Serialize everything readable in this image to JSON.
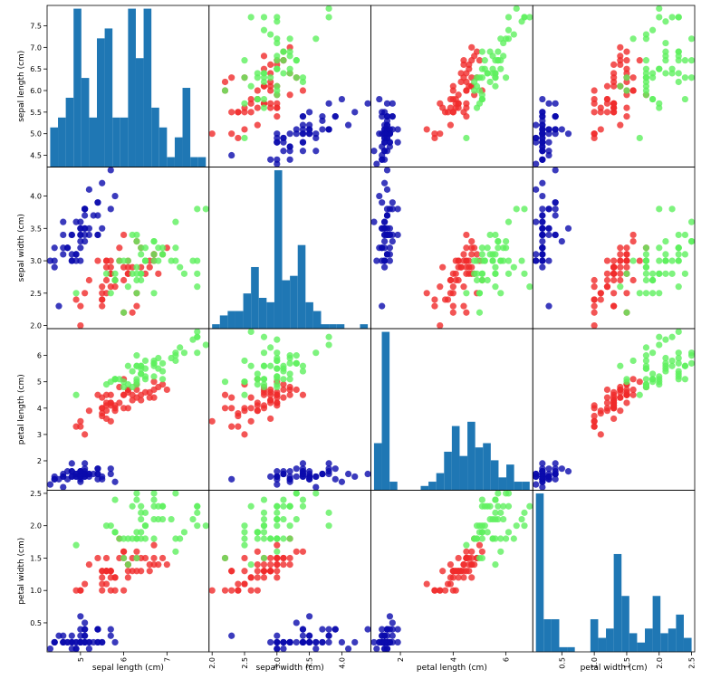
{
  "colors": {
    "setosa": "#0a0aad",
    "versicolor": "#f02a2a",
    "virginica": "#5ef05e",
    "hist": "#1f77b4"
  },
  "variables": [
    {
      "label": "sepal length (cm)",
      "min": 4.3,
      "max": 7.9,
      "ticks": [
        4.5,
        5.0,
        5.5,
        6.0,
        6.5,
        7.0,
        7.5
      ],
      "tick_labels": [
        "4.5",
        "5.0",
        "5.5",
        "6.0",
        "6.5",
        "7.0",
        "7.5"
      ],
      "xticks": [
        5,
        6,
        7
      ],
      "xtick_labels": [
        "5",
        "6",
        "7"
      ]
    },
    {
      "label": "sepal width (cm)",
      "min": 2.0,
      "max": 4.4,
      "ticks": [
        2.0,
        2.5,
        3.0,
        3.5,
        4.0
      ],
      "tick_labels": [
        "2.0",
        "2.5",
        "3.0",
        "3.5",
        "4.0"
      ],
      "xticks": [
        2.0,
        2.5,
        3.0,
        3.5,
        4.0
      ],
      "xtick_labels": [
        "2.0",
        "2.5",
        "3.0",
        "3.5",
        "4.0"
      ]
    },
    {
      "label": "petal length (cm)",
      "min": 1.0,
      "max": 6.9,
      "ticks": [
        2,
        3,
        4,
        5,
        6
      ],
      "tick_labels": [
        "2",
        "3",
        "4",
        "5",
        "6"
      ],
      "xticks": [
        2,
        4,
        6
      ],
      "xtick_labels": [
        "2",
        "4",
        "6"
      ]
    },
    {
      "label": "petal width (cm)",
      "min": 0.1,
      "max": 2.5,
      "ticks": [
        0.5,
        1.0,
        1.5,
        2.0,
        2.5
      ],
      "tick_labels": [
        "0.5",
        "1.0",
        "1.5",
        "2.0",
        "2.5"
      ],
      "xticks": [
        0.5,
        1.0,
        1.5,
        2.0,
        2.5
      ],
      "xtick_labels": [
        "0.5",
        "1.0",
        "1.5",
        "2.0",
        "2.5"
      ]
    }
  ],
  "chart_data": {
    "type": "scatter",
    "title": "",
    "layout": "scatter matrix 4x4, histograms on diagonal",
    "variables": [
      "sepal length (cm)",
      "sepal width (cm)",
      "petal length (cm)",
      "petal width (cm)"
    ],
    "histograms": [
      {
        "variable": "sepal length (cm)",
        "bins": 20,
        "counts": [
          4,
          5,
          7,
          16,
          9,
          5,
          13,
          14,
          5,
          5,
          16,
          11,
          16,
          6,
          4,
          1,
          3,
          8,
          1,
          1
        ]
      },
      {
        "variable": "sepal width (cm)",
        "bins": 20,
        "counts": [
          1,
          3,
          4,
          4,
          8,
          14,
          7,
          6,
          36,
          11,
          12,
          19,
          6,
          4,
          1,
          1,
          1,
          0,
          0,
          1
        ]
      },
      {
        "variable": "petal length (cm)",
        "bins": 20,
        "counts": [
          11,
          37,
          2,
          0,
          0,
          0,
          1,
          2,
          4,
          9,
          15,
          8,
          16,
          10,
          11,
          7,
          3,
          6,
          2,
          2
        ]
      },
      {
        "variable": "petal width (cm)",
        "bins": 20,
        "counts": [
          34,
          7,
          7,
          1,
          1,
          0,
          0,
          7,
          3,
          5,
          21,
          12,
          4,
          2,
          5,
          12,
          4,
          5,
          8,
          3
        ]
      }
    ],
    "series": [
      {
        "color": "setosa",
        "points": [
          [
            5.1,
            3.5,
            1.4,
            0.2
          ],
          [
            4.9,
            3.0,
            1.4,
            0.2
          ],
          [
            4.7,
            3.2,
            1.3,
            0.2
          ],
          [
            4.6,
            3.1,
            1.5,
            0.2
          ],
          [
            5.0,
            3.6,
            1.4,
            0.2
          ],
          [
            5.4,
            3.9,
            1.7,
            0.4
          ],
          [
            4.6,
            3.4,
            1.4,
            0.3
          ],
          [
            5.0,
            3.4,
            1.5,
            0.2
          ],
          [
            4.4,
            2.9,
            1.4,
            0.2
          ],
          [
            4.9,
            3.1,
            1.5,
            0.1
          ],
          [
            5.4,
            3.7,
            1.5,
            0.2
          ],
          [
            4.8,
            3.4,
            1.6,
            0.2
          ],
          [
            4.8,
            3.0,
            1.4,
            0.1
          ],
          [
            4.3,
            3.0,
            1.1,
            0.1
          ],
          [
            5.8,
            4.0,
            1.2,
            0.2
          ],
          [
            5.7,
            4.4,
            1.5,
            0.4
          ],
          [
            5.4,
            3.9,
            1.3,
            0.4
          ],
          [
            5.1,
            3.5,
            1.4,
            0.3
          ],
          [
            5.7,
            3.8,
            1.7,
            0.3
          ],
          [
            5.1,
            3.8,
            1.5,
            0.3
          ],
          [
            5.4,
            3.4,
            1.7,
            0.2
          ],
          [
            5.1,
            3.7,
            1.5,
            0.4
          ],
          [
            4.6,
            3.6,
            1.0,
            0.2
          ],
          [
            5.1,
            3.3,
            1.7,
            0.5
          ],
          [
            4.8,
            3.4,
            1.9,
            0.2
          ],
          [
            5.0,
            3.0,
            1.6,
            0.2
          ],
          [
            5.0,
            3.4,
            1.6,
            0.4
          ],
          [
            5.2,
            3.5,
            1.5,
            0.2
          ],
          [
            5.2,
            3.4,
            1.4,
            0.2
          ],
          [
            4.7,
            3.2,
            1.6,
            0.2
          ],
          [
            4.8,
            3.1,
            1.6,
            0.2
          ],
          [
            5.4,
            3.4,
            1.5,
            0.4
          ],
          [
            5.2,
            4.1,
            1.5,
            0.1
          ],
          [
            5.5,
            4.2,
            1.4,
            0.2
          ],
          [
            4.9,
            3.1,
            1.5,
            0.2
          ],
          [
            5.0,
            3.2,
            1.2,
            0.2
          ],
          [
            5.5,
            3.5,
            1.3,
            0.2
          ],
          [
            4.9,
            3.6,
            1.4,
            0.1
          ],
          [
            4.4,
            3.0,
            1.3,
            0.2
          ],
          [
            5.1,
            3.4,
            1.5,
            0.2
          ],
          [
            5.0,
            3.5,
            1.3,
            0.3
          ],
          [
            4.5,
            2.3,
            1.3,
            0.3
          ],
          [
            4.4,
            3.2,
            1.3,
            0.2
          ],
          [
            5.0,
            3.5,
            1.6,
            0.6
          ],
          [
            5.1,
            3.8,
            1.9,
            0.4
          ],
          [
            4.8,
            3.0,
            1.4,
            0.3
          ],
          [
            5.1,
            3.8,
            1.6,
            0.2
          ],
          [
            4.6,
            3.2,
            1.4,
            0.2
          ],
          [
            5.3,
            3.7,
            1.5,
            0.2
          ],
          [
            5.0,
            3.3,
            1.4,
            0.2
          ]
        ]
      },
      {
        "color": "versicolor",
        "points": [
          [
            7.0,
            3.2,
            4.7,
            1.4
          ],
          [
            6.4,
            3.2,
            4.5,
            1.5
          ],
          [
            6.9,
            3.1,
            4.9,
            1.5
          ],
          [
            5.5,
            2.3,
            4.0,
            1.3
          ],
          [
            6.5,
            2.8,
            4.6,
            1.5
          ],
          [
            5.7,
            2.8,
            4.5,
            1.3
          ],
          [
            6.3,
            3.3,
            4.7,
            1.6
          ],
          [
            4.9,
            2.4,
            3.3,
            1.0
          ],
          [
            6.6,
            2.9,
            4.6,
            1.3
          ],
          [
            5.2,
            2.7,
            3.9,
            1.4
          ],
          [
            5.0,
            2.0,
            3.5,
            1.0
          ],
          [
            5.9,
            3.0,
            4.2,
            1.5
          ],
          [
            6.0,
            2.2,
            4.0,
            1.0
          ],
          [
            6.1,
            2.9,
            4.7,
            1.4
          ],
          [
            5.6,
            2.9,
            3.6,
            1.3
          ],
          [
            6.7,
            3.1,
            4.4,
            1.4
          ],
          [
            5.6,
            3.0,
            4.5,
            1.5
          ],
          [
            5.8,
            2.7,
            4.1,
            1.0
          ],
          [
            6.2,
            2.2,
            4.5,
            1.5
          ],
          [
            5.6,
            2.5,
            3.9,
            1.1
          ],
          [
            5.9,
            3.2,
            4.8,
            1.8
          ],
          [
            6.1,
            2.8,
            4.0,
            1.3
          ],
          [
            6.3,
            2.5,
            4.9,
            1.5
          ],
          [
            6.1,
            2.8,
            4.7,
            1.2
          ],
          [
            6.4,
            2.9,
            4.3,
            1.3
          ],
          [
            6.6,
            3.0,
            4.4,
            1.4
          ],
          [
            6.8,
            2.8,
            4.8,
            1.4
          ],
          [
            6.7,
            3.0,
            5.0,
            1.7
          ],
          [
            6.0,
            2.9,
            4.5,
            1.5
          ],
          [
            5.7,
            2.6,
            3.5,
            1.0
          ],
          [
            5.5,
            2.4,
            3.8,
            1.1
          ],
          [
            5.5,
            2.4,
            3.7,
            1.0
          ],
          [
            5.8,
            2.7,
            3.9,
            1.2
          ],
          [
            6.0,
            2.7,
            5.1,
            1.6
          ],
          [
            5.4,
            3.0,
            4.5,
            1.5
          ],
          [
            6.0,
            3.4,
            4.5,
            1.6
          ],
          [
            6.7,
            3.1,
            4.7,
            1.5
          ],
          [
            6.3,
            2.3,
            4.4,
            1.3
          ],
          [
            5.6,
            3.0,
            4.1,
            1.3
          ],
          [
            5.5,
            2.5,
            4.0,
            1.3
          ],
          [
            5.5,
            2.6,
            4.4,
            1.2
          ],
          [
            6.1,
            3.0,
            4.6,
            1.4
          ],
          [
            5.8,
            2.6,
            4.0,
            1.2
          ],
          [
            5.0,
            2.3,
            3.3,
            1.0
          ],
          [
            5.6,
            2.7,
            4.2,
            1.3
          ],
          [
            5.7,
            3.0,
            4.2,
            1.2
          ],
          [
            5.7,
            2.9,
            4.2,
            1.3
          ],
          [
            6.2,
            2.9,
            4.3,
            1.3
          ],
          [
            5.1,
            2.5,
            3.0,
            1.1
          ],
          [
            5.7,
            2.8,
            4.1,
            1.3
          ]
        ]
      },
      {
        "color": "virginica",
        "points": [
          [
            6.3,
            3.3,
            6.0,
            2.5
          ],
          [
            5.8,
            2.7,
            5.1,
            1.9
          ],
          [
            7.1,
            3.0,
            5.9,
            2.1
          ],
          [
            6.3,
            2.9,
            5.6,
            1.8
          ],
          [
            6.5,
            3.0,
            5.8,
            2.2
          ],
          [
            7.6,
            3.0,
            6.6,
            2.1
          ],
          [
            4.9,
            2.5,
            4.5,
            1.7
          ],
          [
            7.3,
            2.9,
            6.3,
            1.8
          ],
          [
            6.7,
            2.5,
            5.8,
            1.8
          ],
          [
            7.2,
            3.6,
            6.1,
            2.5
          ],
          [
            6.5,
            3.2,
            5.1,
            2.0
          ],
          [
            6.4,
            2.7,
            5.3,
            1.9
          ],
          [
            6.8,
            3.0,
            5.5,
            2.1
          ],
          [
            5.7,
            2.5,
            5.0,
            2.0
          ],
          [
            5.8,
            2.8,
            5.1,
            2.4
          ],
          [
            6.4,
            3.2,
            5.3,
            2.3
          ],
          [
            6.5,
            3.0,
            5.5,
            1.8
          ],
          [
            7.7,
            3.8,
            6.7,
            2.2
          ],
          [
            7.7,
            2.6,
            6.9,
            2.3
          ],
          [
            6.0,
            2.2,
            5.0,
            1.5
          ],
          [
            6.9,
            3.2,
            5.7,
            2.3
          ],
          [
            5.6,
            2.8,
            4.9,
            2.0
          ],
          [
            7.7,
            2.8,
            6.7,
            2.0
          ],
          [
            6.3,
            2.7,
            4.9,
            1.8
          ],
          [
            6.7,
            3.3,
            5.7,
            2.1
          ],
          [
            7.2,
            3.2,
            6.0,
            1.8
          ],
          [
            6.2,
            2.8,
            4.8,
            1.8
          ],
          [
            6.1,
            3.0,
            4.9,
            1.8
          ],
          [
            6.4,
            2.8,
            5.6,
            2.1
          ],
          [
            7.2,
            3.0,
            5.8,
            1.6
          ],
          [
            7.4,
            2.8,
            6.1,
            1.9
          ],
          [
            7.9,
            3.8,
            6.4,
            2.0
          ],
          [
            6.4,
            2.8,
            5.6,
            2.2
          ],
          [
            6.3,
            2.8,
            5.1,
            1.5
          ],
          [
            6.1,
            2.6,
            5.6,
            1.4
          ],
          [
            7.7,
            3.0,
            6.1,
            2.3
          ],
          [
            6.3,
            3.4,
            5.6,
            2.4
          ],
          [
            6.4,
            3.1,
            5.5,
            1.8
          ],
          [
            6.0,
            3.0,
            4.8,
            1.8
          ],
          [
            6.9,
            3.1,
            5.4,
            2.1
          ],
          [
            6.7,
            3.1,
            5.6,
            2.4
          ],
          [
            6.9,
            3.1,
            5.1,
            2.3
          ],
          [
            5.8,
            2.7,
            5.1,
            1.9
          ],
          [
            6.8,
            3.2,
            5.9,
            2.3
          ],
          [
            6.7,
            3.3,
            5.7,
            2.5
          ],
          [
            6.7,
            3.0,
            5.2,
            2.3
          ],
          [
            6.3,
            2.5,
            5.0,
            1.9
          ],
          [
            6.5,
            3.0,
            5.2,
            2.0
          ],
          [
            6.2,
            3.4,
            5.4,
            2.3
          ],
          [
            5.9,
            3.0,
            5.1,
            1.8
          ]
        ]
      }
    ],
    "grid": false,
    "legend": "none"
  }
}
